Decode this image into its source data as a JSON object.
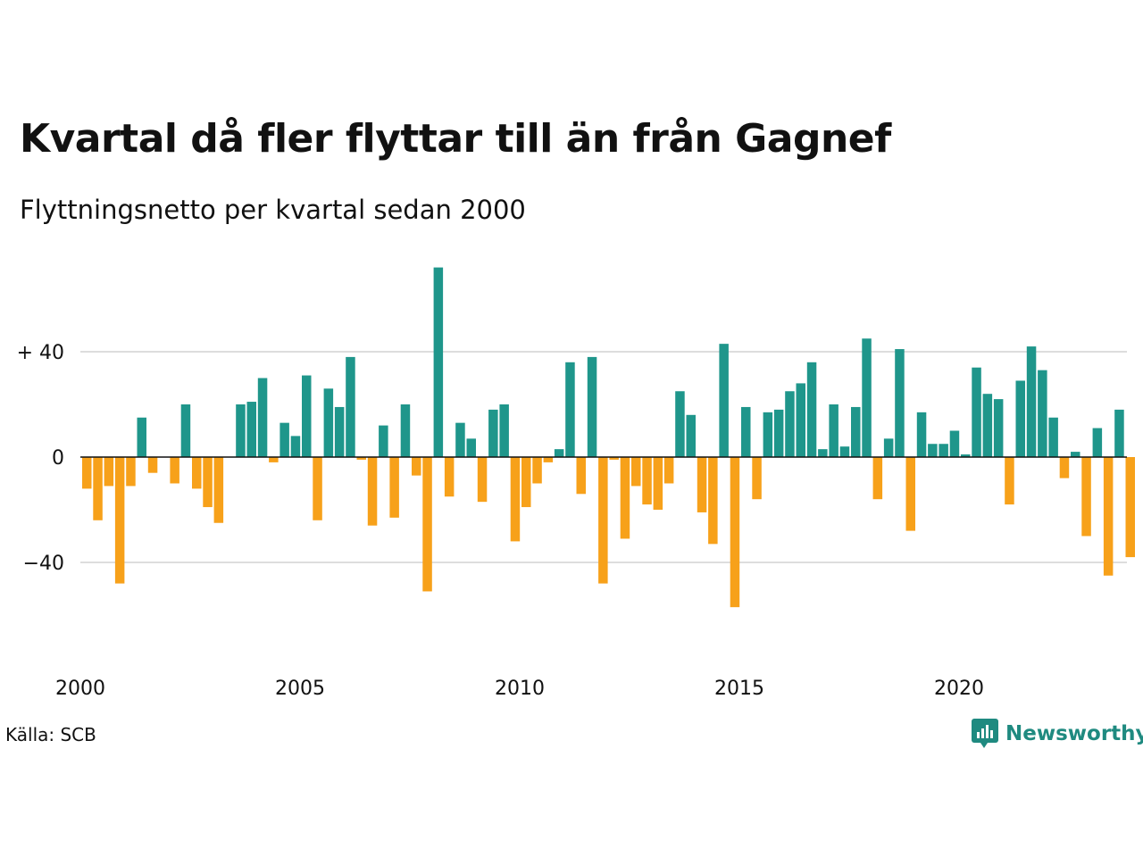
{
  "title": "Kvartal då fler flyttar till än från Gagnef",
  "subtitle": "Flyttningsnetto per kvartal sedan 2000",
  "source": "Källa: SCB",
  "logo_text": "Newsworthy",
  "colors": {
    "positive": "#1f968b",
    "negative": "#f7a11a",
    "grid": "#dddddd",
    "zero": "#111111",
    "brand": "#1f8a80"
  },
  "chart_data": {
    "type": "bar",
    "title": "Kvartal då fler flyttar till än från Gagnef",
    "subtitle": "Flyttningsnetto per kvartal sedan 2000",
    "xlabel": "",
    "ylabel": "",
    "ylim": [
      -75,
      75
    ],
    "y_ticks": [
      {
        "value": 40,
        "label": "+ 40"
      },
      {
        "value": 0,
        "label": "0"
      },
      {
        "value": -40,
        "label": "−40"
      }
    ],
    "x_ticks": [
      {
        "value": 2000,
        "label": "2000"
      },
      {
        "value": 2005,
        "label": "2005"
      },
      {
        "value": 2010,
        "label": "2010"
      },
      {
        "value": 2015,
        "label": "2015"
      },
      {
        "value": 2020,
        "label": "2020"
      }
    ],
    "grid": true,
    "series": [
      {
        "categories": [
          "2000Q1",
          "2000Q2",
          "2000Q3",
          "2000Q4",
          "2001Q1",
          "2001Q2",
          "2001Q3",
          "2001Q4",
          "2002Q1",
          "2002Q2",
          "2002Q3",
          "2002Q4",
          "2003Q1",
          "2003Q2",
          "2003Q3",
          "2003Q4",
          "2004Q1",
          "2004Q2",
          "2004Q3",
          "2004Q4",
          "2005Q1",
          "2005Q2",
          "2005Q3",
          "2005Q4",
          "2006Q1",
          "2006Q2",
          "2006Q3",
          "2006Q4",
          "2007Q1",
          "2007Q2",
          "2007Q3",
          "2007Q4",
          "2008Q1",
          "2008Q2",
          "2008Q3",
          "2008Q4",
          "2009Q1",
          "2009Q2",
          "2009Q3",
          "2009Q4",
          "2010Q1",
          "2010Q2",
          "2010Q3",
          "2010Q4",
          "2011Q1",
          "2011Q2",
          "2011Q3",
          "2011Q4",
          "2012Q1",
          "2012Q2",
          "2012Q3",
          "2012Q4",
          "2013Q1",
          "2013Q2",
          "2013Q3",
          "2013Q4",
          "2014Q1",
          "2014Q2",
          "2014Q3",
          "2014Q4",
          "2015Q1",
          "2015Q2",
          "2015Q3",
          "2015Q4",
          "2016Q1",
          "2016Q2",
          "2016Q3",
          "2016Q4",
          "2017Q1",
          "2017Q2",
          "2017Q3",
          "2017Q4",
          "2018Q1",
          "2018Q2",
          "2018Q3",
          "2018Q4",
          "2019Q1",
          "2019Q2",
          "2019Q3",
          "2019Q4",
          "2020Q1",
          "2020Q2",
          "2020Q3",
          "2020Q4",
          "2021Q1",
          "2021Q2",
          "2021Q3",
          "2021Q4",
          "2022Q1",
          "2022Q2",
          "2022Q3",
          "2022Q4",
          "2023Q1",
          "2023Q2",
          "2023Q3",
          "2023Q4"
        ],
        "values": [
          -12,
          -24,
          -11,
          -48,
          -11,
          15,
          -6,
          0,
          -10,
          20,
          -12,
          -19,
          -25,
          0,
          20,
          21,
          30,
          -2,
          13,
          8,
          31,
          -24,
          26,
          19,
          38,
          -1,
          -26,
          12,
          -23,
          20,
          -7,
          -51,
          72,
          -15,
          13,
          7,
          -17,
          18,
          20,
          -32,
          -19,
          -10,
          -2,
          3,
          36,
          -14,
          38,
          -48,
          -1,
          -31,
          -11,
          -18,
          -20,
          -10,
          25,
          16,
          -21,
          -33,
          43,
          -57,
          19,
          -16,
          17,
          18,
          25,
          28,
          36,
          3,
          20,
          4,
          19,
          45,
          -16,
          7,
          41,
          -28,
          17,
          5,
          5,
          10,
          1,
          34,
          24,
          22,
          -18,
          29,
          42,
          33,
          15,
          -8,
          2,
          -30,
          11,
          -45,
          18,
          -38
        ]
      }
    ]
  }
}
